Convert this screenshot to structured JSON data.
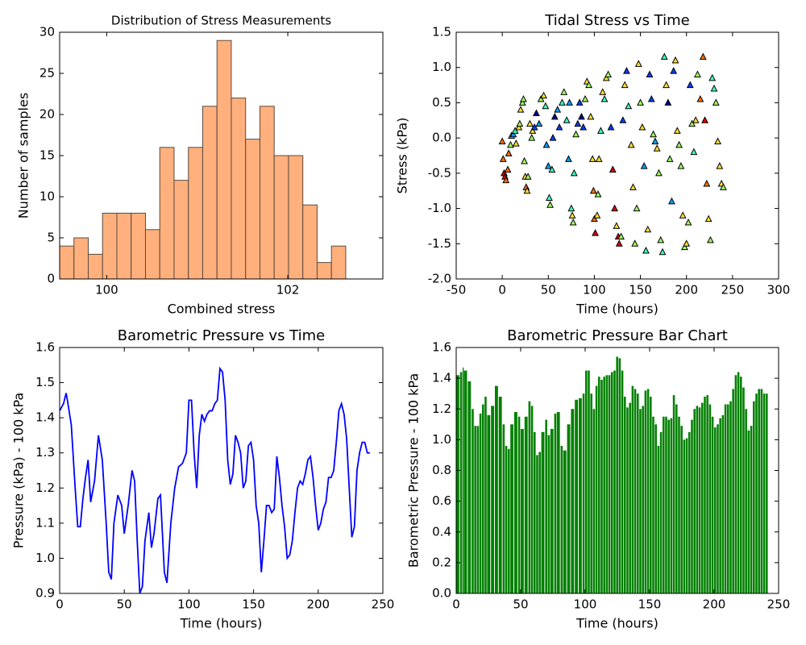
{
  "chart_data": [
    {
      "type": "histogram",
      "title": "Distribution of Stress Measurements",
      "xlabel": "Combined stress",
      "ylabel": "Number of samples",
      "bins": [
        99.48,
        99.638,
        99.796,
        99.954,
        100.112,
        100.27,
        100.428,
        100.586,
        100.744,
        100.902,
        101.06,
        101.218,
        101.376,
        101.534,
        101.692,
        101.85,
        102.008,
        102.166,
        102.324,
        102.482,
        102.64
      ],
      "values": [
        4,
        5,
        3,
        8,
        8,
        8,
        6,
        16,
        12,
        16,
        21,
        29,
        22,
        17,
        21,
        15,
        15,
        9,
        2,
        4
      ],
      "color": "#ffb07c",
      "edgecolor": "#5a4a40",
      "xlim": [
        99.48,
        103.05
      ],
      "xticks": [
        100,
        102
      ],
      "ylim": [
        0,
        30
      ],
      "yticks": [
        0,
        5,
        10,
        15,
        20,
        25,
        30
      ]
    },
    {
      "type": "scatter",
      "title": "Tidal Stress vs Time",
      "xlabel": "Time (hours)",
      "ylabel": "Stress (kPa)",
      "x": [
        0,
        1,
        2,
        3,
        4,
        6,
        7,
        9,
        10,
        12,
        14,
        15,
        18,
        19,
        20,
        22,
        23,
        24,
        25,
        26,
        27,
        28,
        30,
        32,
        33,
        35,
        37,
        40,
        42,
        45,
        47,
        48,
        50,
        51,
        52,
        54,
        55,
        57,
        60,
        62,
        65,
        67,
        70,
        72,
        73,
        75,
        76,
        77,
        78,
        80,
        82,
        84,
        86,
        88,
        90,
        92,
        94,
        96,
        98,
        99,
        100,
        101,
        103,
        104,
        105,
        107,
        109,
        111,
        113,
        115,
        118,
        120,
        122,
        124,
        126,
        127,
        129,
        131,
        133,
        135,
        137,
        140,
        142,
        144,
        146,
        148,
        150,
        152,
        154,
        156,
        158,
        160,
        162,
        164,
        166,
        168,
        170,
        172,
        174,
        176,
        178,
        180,
        182,
        184,
        186,
        188,
        190,
        192,
        194,
        196,
        198,
        200,
        202,
        204,
        206,
        208,
        210,
        212,
        215,
        218,
        220,
        222,
        224,
        226,
        228,
        230,
        232,
        234,
        236,
        238,
        240
      ],
      "values": [
        -0.05,
        -0.3,
        -0.5,
        -0.55,
        -0.6,
        -0.45,
        -0.22,
        -0.1,
        0.03,
        0.05,
        0.1,
        -0.08,
        0.15,
        0.2,
        0.4,
        0.5,
        0.55,
        -0.33,
        -0.55,
        -0.7,
        -0.75,
        -0.55,
        0.2,
        0.0,
        0.1,
        0.15,
        0.35,
        0.2,
        0.55,
        0.6,
        0.45,
        -0.1,
        -0.4,
        -0.85,
        -0.95,
        -0.45,
        0.0,
        0.3,
        0.4,
        0.15,
        0.5,
        0.65,
        0.25,
        -0.3,
        0.5,
        -1.0,
        -1.1,
        -1.2,
        -0.5,
        0.05,
        0.2,
        0.5,
        0.3,
        0.15,
        0.55,
        0.8,
        0.75,
        0.3,
        -0.3,
        -0.75,
        -1.15,
        -1.35,
        -1.1,
        -0.8,
        -0.3,
        0.1,
        0.65,
        0.55,
        0.85,
        0.9,
        0.15,
        -0.45,
        -1.0,
        -1.25,
        -1.4,
        -1.5,
        -1.4,
        0.25,
        0.75,
        0.95,
        0.45,
        -0.1,
        -0.7,
        -1.5,
        -1.0,
        1.05,
        0.5,
        0.15,
        -0.4,
        -1.6,
        -1.3,
        0.9,
        0.55,
        0.05,
        -0.05,
        -0.15,
        -0.5,
        -1.45,
        -1.62,
        1.15,
        0.75,
        0.5,
        -0.3,
        -0.9,
        0.95,
        1.1,
        0.1,
        -0.1,
        -0.4,
        -1.1,
        -1.55,
        -1.5,
        -1.2,
        0.75,
        0.2,
        -0.2,
        0.25,
        0.9,
        0.55,
        1.15,
        0.25,
        -0.65,
        -1.15,
        -1.45,
        0.85,
        0.7,
        0.5,
        -0.05,
        -0.4,
        -0.65,
        -0.7
      ],
      "colors": [
        "#ff7000",
        "#ff7000",
        "#e00000",
        "#e00000",
        "#ff7000",
        "#ff7000",
        "#ff7000",
        "#a0ff60",
        "#40ffc0",
        "#00a0ff",
        "#40ffc0",
        "#ffe030",
        "#ffe030",
        "#a0ff60",
        "#ffe030",
        "#a0ff60",
        "#a0ff60",
        "#a0ff60",
        "#ffe030",
        "#ff7000",
        "#ffe030",
        "#a0ff60",
        "#ffe030",
        "#a0ff60",
        "#ffe030",
        "#0040ff",
        "#00008f",
        "#00a0ff",
        "#a0ff60",
        "#ffe030",
        "#40ffc0",
        "#00a0ff",
        "#00a0ff",
        "#40ffc0",
        "#a0ff60",
        "#40ffc0",
        "#0040ff",
        "#00008f",
        "#00a0ff",
        "#0040ff",
        "#40ffc0",
        "#a0ff60",
        "#40ffc0",
        "#00a0ff",
        "#00a0ff",
        "#40ffc0",
        "#ffe030",
        "#a0ff60",
        "#40ffc0",
        "#a0ff60",
        "#0040ff",
        "#0040ff",
        "#00008f",
        "#0040ff",
        "#a0ff60",
        "#ffe030",
        "#a0ff60",
        "#ffe030",
        "#ffe030",
        "#ff7000",
        "#ff7000",
        "#e00000",
        "#ffe030",
        "#a0ff60",
        "#ffe030",
        "#40ffc0",
        "#ffe030",
        "#40ffc0",
        "#ffe030",
        "#a0ff60",
        "#0040ff",
        "#e00000",
        "#e00000",
        "#ffe030",
        "#e00000",
        "#e00000",
        "#a0ff60",
        "#0040ff",
        "#ffe030",
        "#0040ff",
        "#40ffc0",
        "#ffe030",
        "#ffe030",
        "#a0ff60",
        "#a0ff60",
        "#ffe030",
        "#a0ff60",
        "#ffe030",
        "#00a0ff",
        "#40ffc0",
        "#ffe030",
        "#0040ff",
        "#0040ff",
        "#a0ff60",
        "#00a0ff",
        "#ffe030",
        "#a0ff60",
        "#a0ff60",
        "#40ffc0",
        "#40ffc0",
        "#ffe030",
        "#00008f",
        "#a0ff60",
        "#00a0ff",
        "#0040ff",
        "#ffe030",
        "#ffe030",
        "#a0ff60",
        "#a0ff60",
        "#ffe030",
        "#a0ff60",
        "#ffe030",
        "#a0ff60",
        "#0040ff",
        "#a0ff60",
        "#40ffc0",
        "#ffe030",
        "#a0ff60",
        "#ff7000",
        "#ff7000",
        "#e00000",
        "#ff7000",
        "#ffe030",
        "#a0ff60",
        "#40ffc0",
        "#40ffc0",
        "#a0ff60",
        "#ffe030",
        "#ffe030",
        "#ffe030",
        "#a0ff60"
      ],
      "xlim": [
        -50,
        300
      ],
      "xticks": [
        -50,
        0,
        50,
        100,
        150,
        200,
        250,
        300
      ],
      "ylim": [
        -2,
        1.5
      ],
      "yticks": [
        {
          "value": -2,
          "label": "-2.0"
        },
        -1.5,
        {
          "value": -1,
          "label": "-1.0"
        },
        -0.5,
        {
          "value": 0,
          "label": "0.0"
        },
        0.5,
        {
          "value": 1,
          "label": "1.0"
        },
        1.5
      ]
    },
    {
      "type": "line",
      "title": "Barometric Pressure vs Time",
      "xlabel": "Time (hours)",
      "ylabel": "Pressure (kPa) - 100 kPa",
      "color": "#0000ff",
      "x": [
        0,
        3,
        5,
        6,
        9,
        12,
        14,
        16,
        18,
        20,
        22,
        24,
        27,
        30,
        33,
        36,
        38,
        40,
        42,
        45,
        48,
        50,
        53,
        56,
        58,
        60,
        62,
        64,
        66,
        69,
        71,
        73,
        76,
        78,
        81,
        83,
        86,
        89,
        92,
        95,
        98,
        100,
        102,
        104,
        106,
        108,
        110,
        112,
        114,
        116,
        118,
        120,
        122,
        124,
        126,
        128,
        130,
        132,
        134,
        136,
        138,
        140,
        142,
        144,
        146,
        148,
        150,
        152,
        154,
        156,
        158,
        160,
        162,
        164,
        166,
        168,
        170,
        172,
        174,
        176,
        178,
        180,
        182,
        184,
        186,
        188,
        190,
        192,
        194,
        196,
        198,
        200,
        202,
        204,
        206,
        208,
        210,
        212,
        214,
        216,
        218,
        220,
        222,
        224,
        226,
        228,
        230,
        232,
        234,
        236,
        238,
        240
      ],
      "values": [
        1.42,
        1.44,
        1.47,
        1.45,
        1.38,
        1.2,
        1.09,
        1.09,
        1.17,
        1.23,
        1.28,
        1.16,
        1.22,
        1.35,
        1.28,
        1.1,
        0.96,
        0.94,
        1.1,
        1.18,
        1.15,
        1.07,
        1.15,
        1.25,
        1.22,
        1.05,
        0.9,
        0.92,
        1.05,
        1.13,
        1.03,
        1.07,
        1.17,
        1.18,
        0.96,
        0.93,
        1.1,
        1.2,
        1.26,
        1.27,
        1.3,
        1.45,
        1.45,
        1.3,
        1.2,
        1.35,
        1.41,
        1.39,
        1.41,
        1.42,
        1.42,
        1.44,
        1.45,
        1.54,
        1.53,
        1.45,
        1.28,
        1.21,
        1.24,
        1.35,
        1.33,
        1.3,
        1.2,
        1.22,
        1.32,
        1.33,
        1.28,
        1.15,
        1.1,
        0.96,
        1.05,
        1.15,
        1.15,
        1.13,
        1.14,
        1.29,
        1.23,
        1.15,
        1.09,
        1.0,
        1.01,
        1.05,
        1.13,
        1.2,
        1.22,
        1.21,
        1.24,
        1.28,
        1.29,
        1.23,
        1.15,
        1.08,
        1.1,
        1.14,
        1.16,
        1.23,
        1.23,
        1.25,
        1.33,
        1.42,
        1.44,
        1.41,
        1.34,
        1.2,
        1.06,
        1.09,
        1.25,
        1.3,
        1.33,
        1.33,
        1.3,
        1.3
      ],
      "xlim": [
        0,
        250
      ],
      "xticks": [
        0,
        50,
        100,
        150,
        200,
        250
      ],
      "ylim": [
        0.9,
        1.6
      ],
      "yticks": [
        0.9,
        {
          "value": 1,
          "label": "1.0"
        },
        1.1,
        1.2,
        1.3,
        1.4,
        1.5,
        1.6
      ]
    },
    {
      "type": "bar",
      "title": "Barometric Pressure Bar Chart",
      "xlabel": "Time (hours)",
      "ylabel": "Barometric Pressure - 100 kPa",
      "color": "#008000",
      "x": [
        0,
        3,
        5,
        6,
        9,
        12,
        14,
        16,
        18,
        20,
        22,
        24,
        27,
        30,
        33,
        36,
        38,
        40,
        42,
        45,
        48,
        50,
        53,
        56,
        58,
        60,
        62,
        64,
        66,
        69,
        71,
        73,
        76,
        78,
        81,
        83,
        86,
        89,
        92,
        95,
        98,
        100,
        102,
        104,
        106,
        108,
        110,
        112,
        114,
        116,
        118,
        120,
        122,
        124,
        126,
        128,
        130,
        132,
        134,
        136,
        138,
        140,
        142,
        144,
        146,
        148,
        150,
        152,
        154,
        156,
        158,
        160,
        162,
        164,
        166,
        168,
        170,
        172,
        174,
        176,
        178,
        180,
        182,
        184,
        186,
        188,
        190,
        192,
        194,
        196,
        198,
        200,
        202,
        204,
        206,
        208,
        210,
        212,
        214,
        216,
        218,
        220,
        222,
        224,
        226,
        228,
        230,
        232,
        234,
        236,
        238,
        240
      ],
      "values": [
        1.42,
        1.44,
        1.47,
        1.45,
        1.38,
        1.2,
        1.09,
        1.09,
        1.17,
        1.23,
        1.28,
        1.16,
        1.22,
        1.35,
        1.28,
        1.1,
        0.96,
        0.94,
        1.1,
        1.18,
        1.15,
        1.07,
        1.15,
        1.25,
        1.22,
        1.05,
        0.9,
        0.92,
        1.05,
        1.13,
        1.03,
        1.07,
        1.17,
        1.18,
        0.96,
        0.93,
        1.1,
        1.2,
        1.26,
        1.27,
        1.3,
        1.45,
        1.45,
        1.3,
        1.2,
        1.35,
        1.41,
        1.39,
        1.41,
        1.42,
        1.42,
        1.44,
        1.45,
        1.54,
        1.53,
        1.45,
        1.28,
        1.21,
        1.24,
        1.35,
        1.33,
        1.3,
        1.2,
        1.22,
        1.32,
        1.33,
        1.28,
        1.15,
        1.1,
        0.96,
        1.05,
        1.15,
        1.15,
        1.13,
        1.14,
        1.29,
        1.23,
        1.15,
        1.09,
        1.0,
        1.01,
        1.05,
        1.13,
        1.2,
        1.22,
        1.21,
        1.24,
        1.28,
        1.29,
        1.23,
        1.15,
        1.08,
        1.1,
        1.14,
        1.16,
        1.23,
        1.23,
        1.25,
        1.33,
        1.42,
        1.44,
        1.41,
        1.34,
        1.2,
        1.06,
        1.09,
        1.25,
        1.3,
        1.33,
        1.33,
        1.3,
        1.3
      ],
      "xlim": [
        0,
        250
      ],
      "xticks": [
        0,
        50,
        100,
        150,
        200,
        250
      ],
      "ylim": [
        0,
        1.6
      ],
      "yticks": [
        {
          "value": 0,
          "label": "0.0"
        },
        0.2,
        0.4,
        0.6,
        0.8,
        {
          "value": 1,
          "label": "1.0"
        },
        1.2,
        1.4,
        1.6
      ]
    }
  ]
}
